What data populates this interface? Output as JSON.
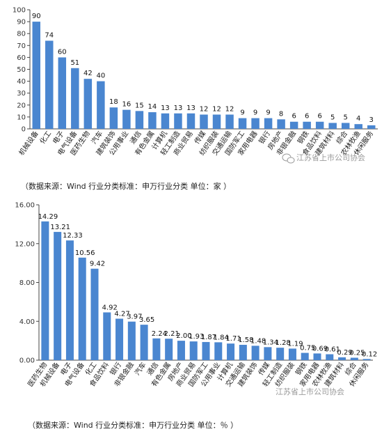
{
  "colors": {
    "bar": "#4a86d0",
    "axis": "#444444",
    "watermark": "#9a9a9a"
  },
  "watermark": {
    "text": "江苏省上市公司协会",
    "icon": "wechat-icon"
  },
  "chart_data": [
    {
      "type": "bar",
      "title": "",
      "xlabel": "",
      "ylabel": "",
      "ylim": [
        0,
        100
      ],
      "yticks": [
        "0",
        "10",
        "20",
        "30",
        "40",
        "50",
        "60",
        "70",
        "80",
        "90",
        "100"
      ],
      "grid": false,
      "categories": [
        "机械设备",
        "化工",
        "电子",
        "电气设备",
        "医药生物",
        "汽车",
        "建筑装饰",
        "公用事业",
        "通信",
        "有色金属",
        "计算机",
        "轻工制造",
        "商业贸易",
        "传媒",
        "纺织服装",
        "交通运输",
        "国防军工",
        "家用电器",
        "银行",
        "房地产",
        "非银金融",
        "钢铁",
        "食品饮料",
        "建筑材料",
        "综合",
        "农林牧渔",
        "休闲服务"
      ],
      "values": [
        90,
        74,
        60,
        51,
        42,
        40,
        18,
        16,
        15,
        14,
        13,
        13,
        13,
        12,
        12,
        12,
        9,
        9,
        9,
        8,
        6,
        6,
        6,
        5,
        5,
        4,
        3
      ],
      "value_labels": [
        "90",
        "74",
        "60",
        "51",
        "42",
        "40",
        "18",
        "16",
        "15",
        "14",
        "13",
        "13",
        "13",
        "12",
        "12",
        "12",
        "9",
        "9",
        "9",
        "8",
        "6",
        "6",
        "6",
        "5",
        "5",
        "4",
        "3"
      ],
      "source_note": "（数据来源：Wind    行业分类标准：申万行业分类    单位：家 ）"
    },
    {
      "type": "bar",
      "title": "",
      "xlabel": "",
      "ylabel": "",
      "ylim": [
        0,
        16
      ],
      "yticks": [
        "0.00",
        "4.00",
        "8.00",
        "12.00",
        "16.00"
      ],
      "grid": false,
      "categories": [
        "医药生物",
        "机械设备",
        "电子",
        "电气设备",
        "化工",
        "食品饮料",
        "银行",
        "非银金融",
        "汽车",
        "通信",
        "有色金属",
        "房地产",
        "商业贸易",
        "国防军工",
        "公用事业",
        "计算机",
        "交通运输",
        "建筑装饰",
        "传媒",
        "轻工制造",
        "纺织服装",
        "钢铁",
        "家用电器",
        "农林牧渔",
        "建筑材料",
        "综合",
        "休闲服务"
      ],
      "values": [
        14.29,
        13.21,
        12.33,
        10.56,
        9.42,
        4.92,
        4.27,
        3.97,
        3.65,
        2.24,
        2.21,
        2.0,
        1.93,
        1.87,
        1.84,
        1.71,
        1.58,
        1.48,
        1.34,
        1.28,
        1.19,
        0.75,
        0.69,
        0.61,
        0.29,
        0.25,
        0.12
      ],
      "value_labels": [
        "14.29",
        "13.21",
        "12.33",
        "10.56",
        "9.42",
        "4.92",
        "4.27",
        "3.97",
        "3.65",
        "2.24",
        "2.21",
        "2.00",
        "1.93",
        "1.87",
        "1.84",
        "1.71",
        "1.58",
        "1.48",
        "1.34",
        "1.28",
        "1.19",
        "0.75",
        "0.69",
        "0.61",
        "0.29",
        "0.25",
        "0.12"
      ],
      "source_note": "（数据来源：Wind    行业分类标准：申万行业分类    单位：％ ）"
    }
  ]
}
